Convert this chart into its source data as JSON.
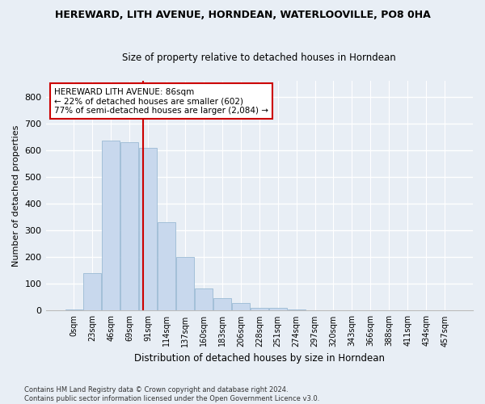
{
  "title": "HEREWARD, LITH AVENUE, HORNDEAN, WATERLOOVILLE, PO8 0HA",
  "subtitle": "Size of property relative to detached houses in Horndean",
  "xlabel": "Distribution of detached houses by size in Horndean",
  "ylabel": "Number of detached properties",
  "bar_color": "#c8d8ed",
  "bar_edgecolor": "#9bbad4",
  "categories": [
    "0sqm",
    "23sqm",
    "46sqm",
    "69sqm",
    "91sqm",
    "114sqm",
    "137sqm",
    "160sqm",
    "183sqm",
    "206sqm",
    "228sqm",
    "251sqm",
    "274sqm",
    "297sqm",
    "320sqm",
    "343sqm",
    "366sqm",
    "388sqm",
    "411sqm",
    "434sqm",
    "457sqm"
  ],
  "values": [
    5,
    140,
    635,
    630,
    610,
    330,
    200,
    83,
    48,
    28,
    10,
    10,
    5,
    0,
    0,
    0,
    0,
    0,
    0,
    0,
    2
  ],
  "ylim": [
    0,
    860
  ],
  "yticks": [
    0,
    100,
    200,
    300,
    400,
    500,
    600,
    700,
    800
  ],
  "annotation_text": "HEREWARD LITH AVENUE: 86sqm\n← 22% of detached houses are smaller (602)\n77% of semi-detached houses are larger (2,084) →",
  "annotation_box_edgecolor": "#cc0000",
  "vline_color": "#cc0000",
  "background_color": "#e8eef5",
  "grid_color": "#ffffff",
  "footnote": "Contains HM Land Registry data © Crown copyright and database right 2024.\nContains public sector information licensed under the Open Government Licence v3.0."
}
